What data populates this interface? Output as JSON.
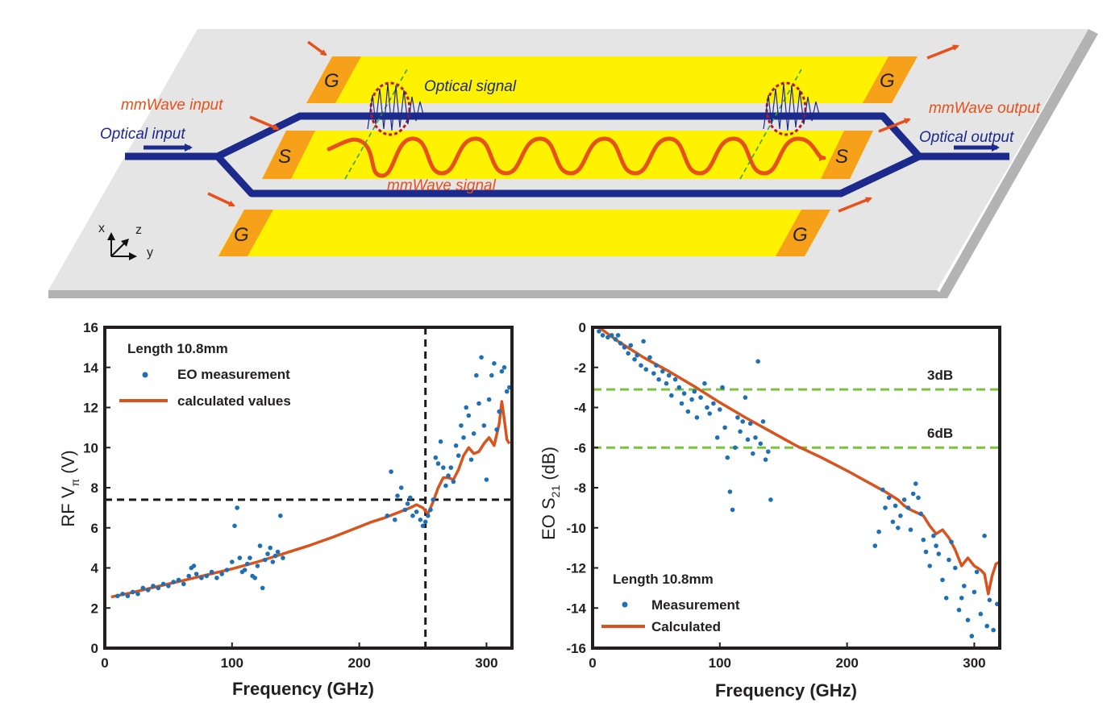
{
  "diagram": {
    "labels": {
      "g_top_left": "G",
      "g_top_right": "G",
      "s_left": "S",
      "s_right": "S",
      "g_bottom_left": "G",
      "g_bottom_right": "G",
      "optical_signal": "Optical signal",
      "mmwave_input": "mmWave input",
      "optical_input": "Optical input",
      "mmwave_output": "mmWave output",
      "optical_output": "Optical output",
      "mmwave_signal": "mmWave signal",
      "axis_x": "x",
      "axis_z": "z",
      "axis_y": "y"
    },
    "colors": {
      "substrate": "#e4e5e4",
      "substrate_side": "#b3b3b3",
      "electrode": "#fff200",
      "contact_pad": "#f7a11a",
      "waveguide": "#1b2a8c",
      "signal": "#e8501b",
      "label_red": "#e8501b",
      "label_blue": "#1b2a8c"
    }
  },
  "chart_data": [
    {
      "type": "scatter",
      "xlabel": "Frequency (GHz)",
      "ylabel_main": "RF V",
      "ylabel_sub": "π",
      "ylabel_tail": " (V)",
      "xlim": [
        0,
        320
      ],
      "ylim": [
        0,
        16
      ],
      "xticks": [
        "0",
        "100",
        "200",
        "300"
      ],
      "yticks": [
        "0",
        "2",
        "4",
        "6",
        "8",
        "10",
        "12",
        "14",
        "16"
      ],
      "annotation": "Length 10.8mm",
      "legend": [
        "EO measurement",
        "calculated values"
      ],
      "legend_position": "top-left",
      "reference_lines": {
        "x": 252,
        "y": 7.4
      },
      "colors": {
        "measurement": "#1f6fb4",
        "calculated": "#d9531e",
        "reference": "#1a1a1a"
      },
      "series": [
        {
          "name": "EO measurement",
          "x": [
            10,
            14,
            18,
            22,
            26,
            30,
            34,
            38,
            42,
            46,
            50,
            54,
            58,
            62,
            66,
            68,
            70,
            72,
            76,
            80,
            84,
            88,
            92,
            96,
            100,
            102,
            104,
            106,
            108,
            110,
            112,
            114,
            116,
            118,
            120,
            122,
            124,
            126,
            128,
            130,
            132,
            134,
            136,
            138,
            140,
            222,
            225,
            228,
            230,
            233,
            236,
            238,
            240,
            242,
            245,
            248,
            250,
            252,
            254,
            256,
            258,
            260,
            262,
            264,
            266,
            268,
            270,
            272,
            274,
            276,
            278,
            280,
            282,
            284,
            286,
            288,
            290,
            292,
            294,
            296,
            298,
            300,
            302,
            304,
            306,
            308,
            310,
            312,
            314,
            316,
            318
          ],
          "y": [
            2.6,
            2.7,
            2.6,
            2.8,
            2.7,
            3.0,
            2.9,
            3.1,
            3.0,
            3.2,
            3.1,
            3.3,
            3.4,
            3.2,
            3.6,
            4.0,
            4.1,
            3.7,
            3.5,
            3.6,
            3.8,
            3.5,
            3.7,
            3.9,
            4.3,
            6.1,
            7.0,
            4.5,
            3.8,
            3.9,
            4.2,
            4.5,
            3.6,
            3.5,
            4.1,
            5.1,
            3.0,
            4.4,
            4.7,
            5.0,
            4.3,
            4.6,
            4.8,
            6.6,
            4.5,
            6.6,
            8.8,
            6.4,
            7.6,
            8.0,
            6.9,
            7.2,
            7.5,
            6.6,
            6.8,
            6.4,
            6.1,
            6.3,
            6.6,
            6.9,
            7.4,
            9.5,
            9.2,
            10.3,
            9.0,
            8.1,
            8.6,
            9.0,
            8.3,
            10.1,
            9.6,
            11.1,
            10.5,
            12.0,
            11.6,
            9.4,
            10.7,
            13.6,
            12.2,
            14.5,
            11.1,
            8.4,
            12.4,
            13.6,
            14.2,
            10.9,
            11.8,
            13.8,
            14.0,
            12.8,
            13.0
          ]
        },
        {
          "name": "calculated values",
          "x": [
            5,
            20,
            40,
            60,
            80,
            100,
            120,
            140,
            160,
            180,
            200,
            210,
            220,
            230,
            240,
            245,
            250,
            254,
            258,
            262,
            266,
            270,
            274,
            278,
            282,
            286,
            290,
            294,
            298,
            302,
            306,
            310,
            312,
            314,
            316,
            318
          ],
          "y": [
            2.55,
            2.75,
            3.05,
            3.35,
            3.65,
            3.95,
            4.3,
            4.7,
            5.1,
            5.55,
            6.05,
            6.3,
            6.5,
            6.75,
            7.0,
            7.15,
            7.0,
            6.7,
            7.3,
            8.0,
            8.5,
            8.5,
            8.4,
            8.9,
            9.6,
            10.0,
            9.7,
            9.8,
            10.2,
            10.5,
            10.1,
            11.2,
            12.3,
            11.4,
            10.4,
            10.2
          ]
        }
      ]
    },
    {
      "type": "scatter",
      "xlabel": "Frequency (GHz)",
      "ylabel_main": "EO S",
      "ylabel_sub": "21",
      "ylabel_tail": " (dB)",
      "xlim": [
        0,
        320
      ],
      "ylim": [
        -16,
        0
      ],
      "xticks": [
        "0",
        "100",
        "200",
        "300"
      ],
      "yticks": [
        "0",
        "-2",
        "-4",
        "-6",
        "-8",
        "-10",
        "-12",
        "-14",
        "-16"
      ],
      "annotation": "Length 10.8mm",
      "legend": [
        "Measurement",
        "Calculated"
      ],
      "legend_position": "bottom-left",
      "reference_lines_y": [
        -3.1,
        -6.0
      ],
      "reference_labels": [
        "3dB",
        "6dB"
      ],
      "colors": {
        "measurement": "#1f6fb4",
        "calculated": "#d9531e",
        "reference": "#7cc33c"
      },
      "series": [
        {
          "name": "Measurement",
          "x": [
            5,
            8,
            12,
            15,
            18,
            20,
            22,
            25,
            28,
            30,
            33,
            35,
            38,
            40,
            42,
            45,
            48,
            50,
            52,
            55,
            58,
            60,
            62,
            65,
            68,
            70,
            72,
            75,
            78,
            80,
            82,
            85,
            88,
            90,
            92,
            95,
            98,
            100,
            102,
            104,
            106,
            108,
            110,
            112,
            114,
            116,
            118,
            120,
            122,
            124,
            126,
            128,
            130,
            132,
            134,
            136,
            138,
            140,
            222,
            225,
            228,
            230,
            233,
            236,
            238,
            240,
            242,
            245,
            248,
            250,
            252,
            254,
            256,
            258,
            260,
            262,
            265,
            268,
            270,
            272,
            275,
            278,
            280,
            282,
            285,
            288,
            290,
            292,
            295,
            298,
            300,
            302,
            305,
            308,
            310,
            312,
            315,
            318
          ],
          "y": [
            -0.2,
            -0.4,
            -0.5,
            -0.4,
            -0.6,
            -0.4,
            -0.8,
            -1.0,
            -1.3,
            -0.9,
            -1.6,
            -1.4,
            -1.9,
            -0.7,
            -2.1,
            -1.5,
            -2.3,
            -1.9,
            -2.6,
            -2.2,
            -2.8,
            -2.4,
            -3.4,
            -2.6,
            -3.0,
            -3.8,
            -3.3,
            -4.2,
            -3.6,
            -3.2,
            -4.5,
            -3.5,
            -2.8,
            -4.0,
            -4.3,
            -3.8,
            -5.5,
            -4.1,
            -3.0,
            -5.0,
            -6.5,
            -8.2,
            -9.1,
            -6.0,
            -4.5,
            -5.2,
            -4.7,
            -3.5,
            -5.6,
            -4.8,
            -6.3,
            -5.5,
            -1.7,
            -5.8,
            -4.7,
            -6.6,
            -6.2,
            -8.6,
            -10.9,
            -10.2,
            -8.1,
            -9.0,
            -8.5,
            -9.7,
            -8.9,
            -10.0,
            -9.4,
            -8.6,
            -9.0,
            -10.1,
            -8.3,
            -7.8,
            -8.5,
            -9.3,
            -10.6,
            -11.2,
            -11.9,
            -10.4,
            -10.9,
            -11.3,
            -12.6,
            -13.5,
            -11.6,
            -10.7,
            -12.0,
            -14.1,
            -13.5,
            -12.9,
            -14.6,
            -15.4,
            -13.2,
            -12.2,
            -14.3,
            -10.4,
            -14.9,
            -13.6,
            -15.1,
            -13.8
          ]
        },
        {
          "name": "Calculated",
          "x": [
            5,
            20,
            40,
            60,
            80,
            100,
            120,
            140,
            160,
            180,
            200,
            210,
            220,
            230,
            240,
            245,
            250,
            255,
            260,
            265,
            270,
            275,
            280,
            285,
            290,
            295,
            300,
            305,
            308,
            311,
            314,
            317,
            320
          ],
          "y": [
            0.0,
            -0.7,
            -1.5,
            -2.2,
            -2.95,
            -3.75,
            -4.5,
            -5.2,
            -5.9,
            -6.5,
            -7.15,
            -7.5,
            -7.85,
            -8.2,
            -8.6,
            -8.9,
            -9.1,
            -9.25,
            -9.4,
            -9.9,
            -10.3,
            -10.1,
            -10.5,
            -11.1,
            -11.9,
            -11.5,
            -11.9,
            -12.1,
            -12.3,
            -13.3,
            -12.4,
            -11.8,
            -11.7
          ]
        }
      ]
    }
  ]
}
